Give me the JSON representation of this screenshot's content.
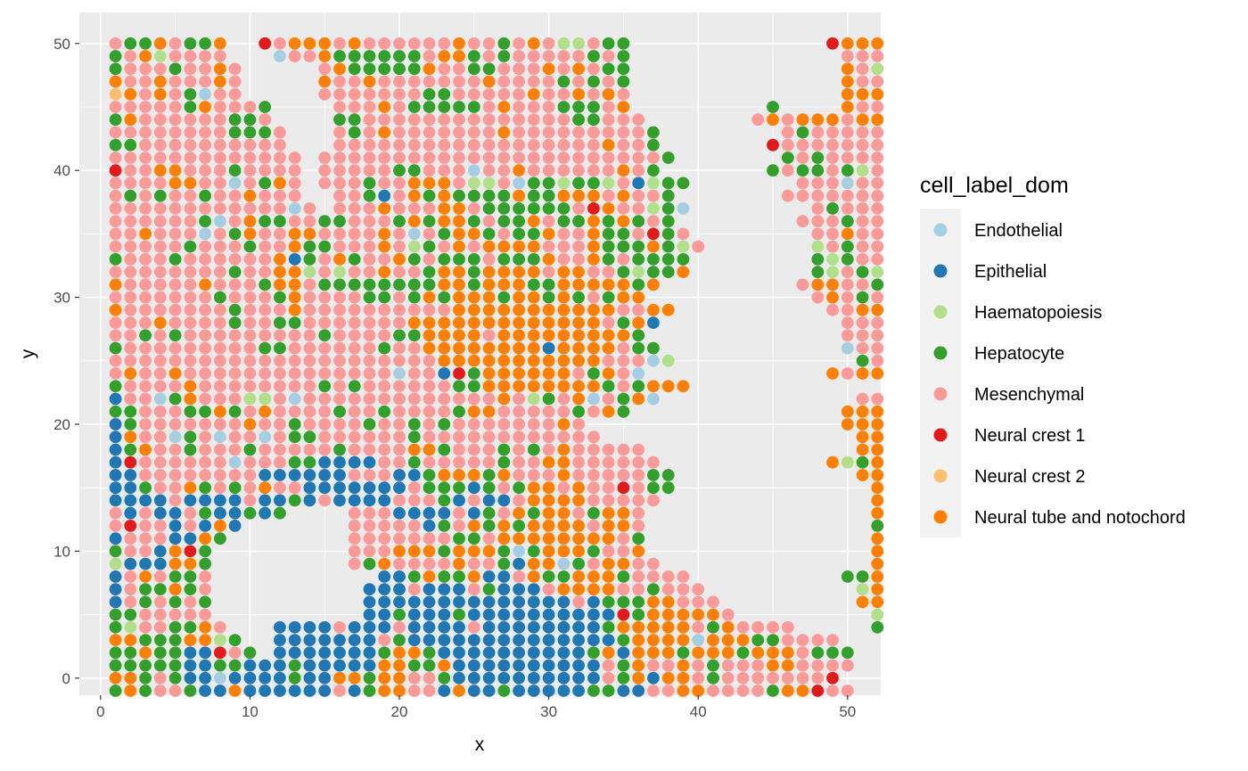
{
  "chart_data": {
    "type": "scatter",
    "title": "",
    "xlabel": "x",
    "ylabel": "y",
    "xlim": [
      -0.5,
      52.5
    ],
    "ylim": [
      -1.5,
      52.5
    ],
    "x_ticks": [
      0,
      10,
      20,
      30,
      40,
      50
    ],
    "y_ticks": [
      0,
      10,
      20,
      30,
      40,
      50
    ],
    "grid": true,
    "legend_position": "right",
    "legend_title": "cell_label_dom",
    "codes": {
      "E": "Endothelial",
      "P": "Epithelial",
      "H": "Haematopoiesis",
      "G": "Hepatocyte",
      "M": "Mesenchymal",
      "R": "Neural crest 1",
      "O": "Neural crest 2",
      "T": "Neural tube and notochord"
    },
    "categories": [
      {
        "code": "E",
        "name": "Endothelial",
        "color": "#a6cee3"
      },
      {
        "code": "P",
        "name": "Epithelial",
        "color": "#1f78b4"
      },
      {
        "code": "H",
        "name": "Haematopoiesis",
        "color": "#b2df8a"
      },
      {
        "code": "G",
        "name": "Hepatocyte",
        "color": "#33a02c"
      },
      {
        "code": "M",
        "name": "Mesenchymal",
        "color": "#fb9a99"
      },
      {
        "code": "R",
        "name": "Neural crest 1",
        "color": "#e31a1c"
      },
      {
        "code": "O",
        "name": "Neural crest 2",
        "color": "#fdbf6f"
      },
      {
        "code": "T",
        "name": "Neural tube and notochord",
        "color": "#ff7f00"
      }
    ],
    "grid_x_start": 1,
    "grid_y_top": 50,
    "grid_rows": [
      "MGGTMGGT..RMTTTMTMMMMMMTMMGMTMHHMGG.............RTTT",
      "GMTHMMMM...EMMTGGGGGGMTTGMGMMMMMGMG..............MMMT",
      "GMMMGMMTM.....MTGGGGGTMMGGMMMTMTMGG..............TMHT",
      "TMMTMMMTM.....TMMTMMMMMMMTMMMMGMGMG..............TMMT",
      "OTMTMGEMM.....MMMMMMMGGMMMMMTMMTMTM..............TTTT",
      "MMMMMGTMMMG....MMMTMGGGGGMTMMMGGGMT.........G....TMMT",
      "GTMMMMMMGGM....GGMMMMMMMMMMMMMMGGMMM.......MTMTTTMTT",
      "MMMMMMMMGGGM...MGMTMMMMMMMTMMMMMMMMMG........MGMMMMMT",
      "GGMMMMMMMMMM...MMMMMMMMMMMMMMMMMMTMMG.......RMMMMMMMM",
      "MMMMMMMMMMMMM.MMMMMMMMMMMMMMMMMMMMMMMG.......GMGMMMMT",
      "RMMTTMMMGMMMM.MMMMMGGMMMEMMTMMMMMMTMG.......GMGGMGHMMT",
      "MMMMTTMMEMGTM.MMMGMMTTTMHHMEGGHGGHMPHGG.......MMMEMMMMMT",
      "MGMGMMGMMTMMM..MMGPMTGTGGGGTGGTTTMTMMG.......MMMMMMMMM",
      "MMMMMMMMMMMMEM.MMMTMMMTTMGGGGGGMRTMMHGE........MGMMMGMMM",
      "MMMMMMGEMTGGMMGGMMMGTGTTGMGGTMGGTGTGMG........MMMGMMMTM",
      "MMTMMMEMGTMMTTMMMMTMEMGTTGMGGTMMTGGMRGM........MMTMMTMTM",
      "MMMMMGMMMGMMTGGMMMTMHGMTMTTTTMMMTGGGTGHM.......HMGMMMMTM",
      "GMMMGMMMMMMTPGMTGMMTGMGGGMGGGTMMTGMGGGG........GHGMMMMM",
      "MMMMMMMMGMMTTHMHMMTMMGTTGTTTTMTTMMGHGGT........GHMGHMMMM",
      "TMMMMMTMMMGTTMGGGGGGGGTTGTTTGGTTTTTGT.........MTTMMGMM",
      "MMMMMMMGMMMGTMMMMGGMGTGTTTGTTGTGMGTT...........MTMGMMMMG",
      "TMMMMMMMGMMMTMMMMMMMMMMTTTTTTTTTTTMMTT..........MMTTMTMM",
      "MMMTMMMMGMMGGMMMMMMMTTTTTTTTTTTTTMGTP............MMMMMMMM",
      "MMGMGMMMMMMMMMGMMMMGGTTTTMTTTTTTTTTG.............MMMMMTM",
      "GMMMMMMMMMGGMMMMMMGMMTTTTTTTTPTTTTMGG............EMMMTMMM",
      "MMMMMMMMMMMMMMMMMMMMMMTTTTTTTTTTTMMMEH............GMMMMMMM",
      "MTMMTMMMMMMMMMMMMMMEMMPRGTTTTTTMGTME............TMTTMMHTMMTM",
      "GMMMMTMMMMMMMMGMGMMMMMMGGTTTTTTTTGMGTTT.............MMTTTTTGTTMM",
      "PMMEGTMMMHHMEMMMMMMMMMMMMMTMHGMTEMGTE.............MMTTTTTTTTRMET",
      "GGMMMGGTGMTMMMMGMMGMMMMGTTMMMMMGMTG..............TTTTTTTTGTTTMEMHG",
      "PGMMMMMMMTMMGMMMMGMMGMGMMMMMMMTM.................TTTTTMTMMMMMMEMGG",
      "PTMMEGMEMMEMGGMMMMMMGMMMMMMMMMMMM.................TTTTTTTTTGTMMTMHM",
      "PGTMMGMMMGMMMMMGMMMMTTGMMMGMGMTMMMMM..............TTTTTTTTTTTTTMTTMMMMT",
      "PRMMMMMMEMMMGGPPPPMMGMMMMMGMMTTMMMMMM...........THGTTTTTGTMTTTTTTTTGTMMM",
      "PPMMMMMMMMPPPPPPMMMPPGTTTGTMMMTMMMMMGG............TTTTGTTTTTTTTTTTTMGG",
      "PPGMMTGMGMTMMPPPPPPPMGGGPGMGTTMTMMRMGG.............TTTTTTTTTTTTTTTTTT",
      "PPPPMPPPPMPPGPMPPPPMMMGPMPPMTTTTMMMMM..............TTTTTTTTTTMTTTTTTT",
      "MPMPPMGPPGPG....MMMPPPPMPGMTGTTMGTTM...............TTTTTTTTTTTTTTTTTT",
      "MRMMPMPTP.......MMMMMPGMTGTGTTTTMTTM...............GTTTTTGTTTTTTTTTTT",
      "PMMMPPTG........MMMMMMMGGMTTTTTTTTMG...............TTTTTTTTTTTTTTTTTT",
      "GMMPTRG.........MMMTTTGTTTGEGTTTGMMT...............TTTTTTTTTMTTTTTGTT",
      "HPPPTTG.........MGTMMMMTMMGPTTEGMTTMM..............TTTTTTTTTTTTTTTTTTTTM",
      "PMTMGGM...........PPGTGGTPPMTGGTTTGMMMM..........GGTTTTTTTTTTTTTTGTTTTM",
      "PMGGTGM..........PPPMPPPMGPPPMTTTTMMGMMM..........HTMTTTTTTTTTTTTTTTTTT",
      "PMGMGMG..........PPPPPPPPPPPPPPMPGGGTTMMM.........TTTTTTTTTTTTTTTTTTTM",
      "GGMMMMM..........PPGPPPGPPPPPPPPPPRGTTTTTM.........HTMTTTTTTTTTTTTTTTTTT",
      "GHMMGGTM...PPPPMPPPMPPPPMPPPPPPPPGTTTTTMGTMMMM.....GTTTTTTTTTTTTTTTTTTTT",
      "TTGGGTTHG..PPPPPPPMGPPPPPPPPPPPPPPGTTTTETTTGGMMMM....TGTTTTTTTTTGTTTTTTT",
      "GGTGGPPRMG.PPPPPPPGTTGPPPPPPPPPPGTPTTTGTTTGTTTMGGG...GTTTTTTTTTTTTTTTTTT",
      "GGGGGPPGGPPPGPPPPPTTGGTPPPPPPPPPPMGTMMTMGMMMTTMMMM...GTTTTTTTTTTTTGTTTTT",
      "TTGMGPPEPPPPGPPTTGTTMMGPPPPPPPPPPMGTPTTMGMMMMMMMR...PTTTTTTTTTTTTTTTT",
      "GTGMMGPPTPPPPPPMPGTTMMPTPPGPPPPPGGPPMMTTMMMMGTTRMM...TTTTTTTTTTTTTTTTTT"
    ]
  }
}
